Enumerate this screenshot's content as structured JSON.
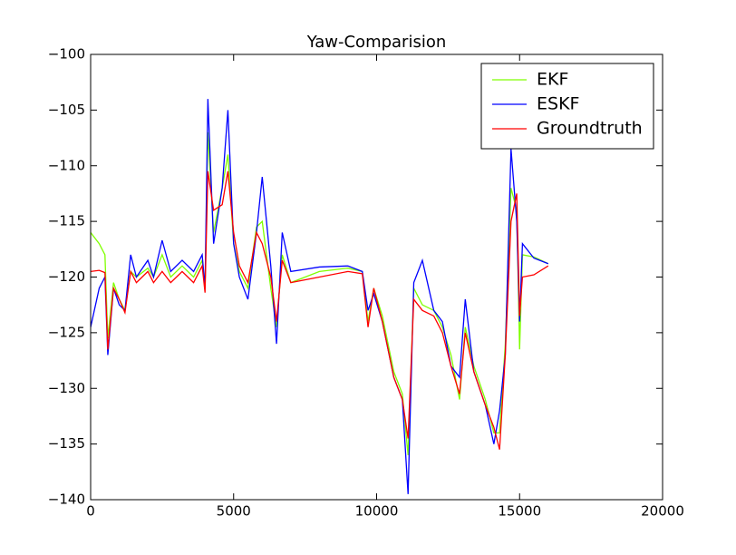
{
  "chart_data": {
    "type": "line",
    "title": "Yaw-Comparision",
    "x": [
      0,
      300,
      500,
      600,
      800,
      1000,
      1200,
      1400,
      1600,
      2000,
      2200,
      2500,
      2800,
      3200,
      3600,
      3900,
      4000,
      4100,
      4300,
      4600,
      4800,
      5000,
      5200,
      5500,
      5800,
      6000,
      6300,
      6500,
      6700,
      7000,
      8000,
      9000,
      9500,
      9700,
      9900,
      10200,
      10600,
      10900,
      11100,
      11300,
      11600,
      12000,
      12300,
      12600,
      12900,
      13100,
      13400,
      13800,
      14100,
      14300,
      14500,
      14700,
      14900,
      15000,
      15100,
      15500,
      16000
    ],
    "series": [
      {
        "name": "EKF",
        "color": "#7fff00",
        "values": [
          -116,
          -117,
          -118,
          -125.5,
          -120.5,
          -122,
          -123,
          -119.5,
          -120,
          -119.2,
          -120,
          -118,
          -120,
          -119,
          -120,
          -118.5,
          -121,
          -107,
          -116,
          -112,
          -109,
          -117,
          -119.5,
          -121,
          -115.5,
          -115,
          -121,
          -124.5,
          -118,
          -120.5,
          -119.5,
          -119.2,
          -119.5,
          -124,
          -121,
          -123.5,
          -128.5,
          -130.5,
          -136,
          -121,
          -122.5,
          -123,
          -124.5,
          -127,
          -131,
          -124.5,
          -128,
          -131,
          -134,
          -134,
          -126,
          -112,
          -114,
          -126.5,
          -118,
          -118.2,
          -118.8
        ]
      },
      {
        "name": "ESKF",
        "color": "#0000ff",
        "values": [
          -124.5,
          -121,
          -120,
          -127,
          -121,
          -122.5,
          -123,
          -118,
          -120,
          -118.5,
          -120,
          -116.7,
          -119.5,
          -118.5,
          -119.5,
          -118,
          -121,
          -104,
          -117,
          -112,
          -105,
          -117,
          -120,
          -122,
          -116,
          -111,
          -119,
          -126,
          -116,
          -119.5,
          -119.1,
          -119,
          -119.5,
          -123,
          -121.5,
          -124,
          -129,
          -131,
          -139.5,
          -120.5,
          -118.5,
          -123,
          -124,
          -128,
          -129,
          -122,
          -128.5,
          -131.5,
          -135,
          -132,
          -127,
          -108.5,
          -115,
          -124,
          -117,
          -118.3,
          -118.8
        ]
      },
      {
        "name": "Groundtruth",
        "color": "#ff0000",
        "values": [
          -119.5,
          -119.4,
          -119.6,
          -126.5,
          -121,
          -122,
          -123.2,
          -119.5,
          -120.5,
          -119.5,
          -120.5,
          -119.5,
          -120.5,
          -119.5,
          -120.5,
          -119,
          -121.4,
          -110.5,
          -114,
          -113.5,
          -110.5,
          -116,
          -119,
          -120.5,
          -116,
          -117,
          -120,
          -124,
          -118.5,
          -120.5,
          -120,
          -119.5,
          -119.7,
          -124.5,
          -121,
          -124,
          -129,
          -131,
          -134.5,
          -122,
          -123,
          -123.5,
          -125,
          -128,
          -130.5,
          -125,
          -128.5,
          -131.5,
          -133.5,
          -135.5,
          -127,
          -115,
          -112.5,
          -123.5,
          -120,
          -119.8,
          -119
        ]
      }
    ],
    "xlim": [
      0,
      20000
    ],
    "ylim": [
      -140,
      -100
    ],
    "xticks": [
      0,
      5000,
      10000,
      15000,
      20000
    ],
    "yticks": [
      {
        "value": -140,
        "label": "−140"
      },
      {
        "value": -135,
        "label": "−135"
      },
      {
        "value": -130,
        "label": "−130"
      },
      {
        "value": -125,
        "label": "−125"
      },
      {
        "value": -120,
        "label": "−120"
      },
      {
        "value": -115,
        "label": "−115"
      },
      {
        "value": -110,
        "label": "−110"
      },
      {
        "value": -105,
        "label": "−105"
      },
      {
        "value": -100,
        "label": "−100"
      }
    ],
    "grid": false,
    "legend": "upper right"
  }
}
